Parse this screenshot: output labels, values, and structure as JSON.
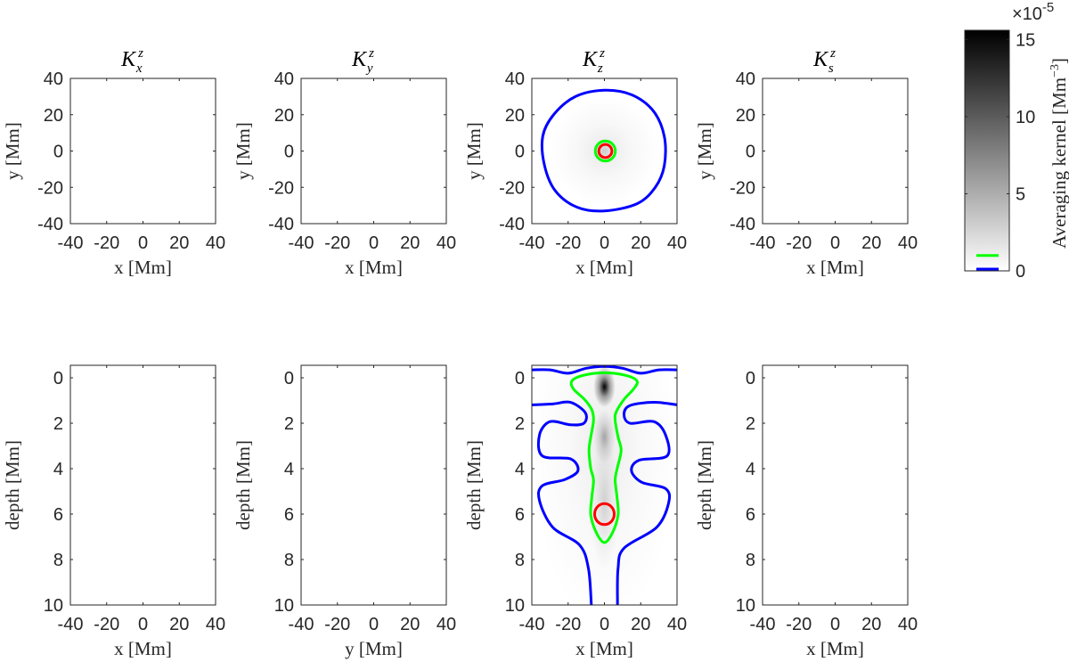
{
  "chart_data": {
    "type": "heatmap",
    "colorbar": {
      "label": "Averaging kernel [Mm",
      "label_exp": "−3",
      "label_end": "]",
      "multiplier": "×10",
      "multiplier_exp": "-5",
      "range": [
        0,
        15.6
      ],
      "ticks": [
        0,
        5,
        10,
        15
      ],
      "tick_labels": [
        "0",
        "5",
        "10",
        "15"
      ],
      "contour_levels": [
        {
          "value": 0.05,
          "color": "#0000ff"
        },
        {
          "value": 1.0,
          "color": "#00ff00"
        }
      ],
      "colormap": "gray-reversed"
    },
    "colors": {
      "blue": "#0000ff",
      "green": "#00ff00",
      "red": "#ff0000",
      "axis": "#262626"
    },
    "top_row": {
      "xlim": [
        -40,
        40
      ],
      "ylim": [
        -40,
        40
      ],
      "xticks": [
        -40,
        -20,
        0,
        20,
        40
      ],
      "xtick_labels": [
        "-40",
        "-20",
        "0",
        "20",
        "40"
      ],
      "yticks": [
        -40,
        -20,
        0,
        20,
        40
      ],
      "ytick_labels": [
        "-40",
        "-20",
        "0",
        "20",
        "40"
      ],
      "ylabel": "y [Mm]",
      "panels": [
        {
          "title_base": "K",
          "title_sup": "z",
          "title_sub": "x",
          "xlabel": "x [Mm]"
        },
        {
          "title_base": "K",
          "title_sup": "z",
          "title_sub": "y",
          "xlabel": "x [Mm]"
        },
        {
          "title_base": "K",
          "title_sup": "z",
          "title_sub": "z",
          "xlabel": "x [Mm]",
          "blobs": [
            {
              "x": 0,
              "y": 0,
              "r": 30,
              "amp": 0.6
            },
            {
              "x": 0,
              "y": 0,
              "r": 7,
              "amp": 1.2
            }
          ],
          "contours": [
            {
              "color": "blue",
              "points": [
                [
                  0,
                  33.5
                ],
                [
                  15,
                  31
                ],
                [
                  27,
                  22
                ],
                [
                  33,
                  8
                ],
                [
                  33,
                  -8
                ],
                [
                  28,
                  -20
                ],
                [
                  18,
                  -29
                ],
                [
                  0,
                  -33
                ],
                [
                  -15,
                  -31
                ],
                [
                  -27,
                  -22
                ],
                [
                  -33,
                  -8
                ],
                [
                  -34,
                  8
                ],
                [
                  -28,
                  20
                ],
                [
                  -16,
                  30
                ]
              ]
            },
            {
              "color": "green",
              "ellipse": [
                0.5,
                0,
                5.5,
                5.5
              ]
            },
            {
              "color": "red",
              "ellipse": [
                0.5,
                0,
                3.6,
                3.6
              ]
            }
          ]
        },
        {
          "title_base": "K",
          "title_sup": "z",
          "title_sub": "s",
          "xlabel": "x [Mm]"
        }
      ]
    },
    "bottom_row": {
      "xlim": [
        -40,
        40
      ],
      "ylim": [
        -0.55,
        10
      ],
      "xticks": [
        -40,
        -20,
        0,
        20,
        40
      ],
      "xtick_labels": [
        "-40",
        "-20",
        "0",
        "20",
        "40"
      ],
      "yticks": [
        0,
        2,
        4,
        6,
        8,
        10
      ],
      "ytick_labels": [
        "0",
        "2",
        "4",
        "6",
        "8",
        "10"
      ],
      "ylabel": "depth [Mm]",
      "panels": [
        {
          "xlabel": "x [Mm]"
        },
        {
          "xlabel": "y [Mm]"
        },
        {
          "xlabel": "x [Mm]",
          "blobs": [
            {
              "x": 0,
              "y": 0.4,
              "r": 6,
              "ry": 0.9,
              "amp": 15
            },
            {
              "x": 0,
              "y": 2.6,
              "r": 6,
              "ry": 1.2,
              "amp": 4
            },
            {
              "x": 0,
              "y": 5.5,
              "r": 8,
              "ry": 3,
              "amp": 1.5
            },
            {
              "x": 0,
              "y": 3,
              "r": 40,
              "ry": 8,
              "amp": 0.4
            }
          ],
          "contours": [
            {
              "color": "blue",
              "points": [
                [
                  -40,
                  -0.35
                ],
                [
                  -30,
                  -0.35
                ],
                [
                  -20,
                  -0.2
                ],
                [
                  -10,
                  -0.42
                ],
                [
                  0,
                  -0.5
                ],
                [
                  10,
                  -0.42
                ],
                [
                  20,
                  -0.2
                ],
                [
                  30,
                  -0.35
                ],
                [
                  40,
                  -0.35
                ]
              ],
              "open": true
            },
            {
              "color": "blue",
              "points": [
                [
                  -40,
                  1.19
                ],
                [
                  -28.5,
                  1.15
                ],
                [
                  -18.7,
                  1.08
                ],
                [
                  -10.5,
                  1.54
                ],
                [
                  -11.3,
                  2.0
                ],
                [
                  -18.7,
                  2.07
                ],
                [
                  -30,
                  1.93
                ],
                [
                  -35.8,
                  2.52
                ],
                [
                  -34.2,
                  3.44
                ],
                [
                  -18.7,
                  3.57
                ],
                [
                  -14.6,
                  4.09
                ],
                [
                  -21.9,
                  4.48
                ],
                [
                  -34.2,
                  4.75
                ],
                [
                  -35.8,
                  5.4
                ],
                [
                  -28.5,
                  6.58
                ],
                [
                  -13.7,
                  7.36
                ],
                [
                  -8.8,
                  8.4
                ],
                [
                  -7.2,
                  10
                ]
              ],
              "open": true
            },
            {
              "color": "blue",
              "points": [
                [
                  40,
                  1.19
                ],
                [
                  27.2,
                  1.08
                ],
                [
                  14.1,
                  1.22
                ],
                [
                  10.8,
                  1.6
                ],
                [
                  14.1,
                  2.0
                ],
                [
                  27.2,
                  1.93
                ],
                [
                  33.7,
                  2.52
                ],
                [
                  34.5,
                  3.44
                ],
                [
                  19,
                  3.63
                ],
                [
                  14.9,
                  4.09
                ],
                [
                  20.6,
                  4.6
                ],
                [
                  33.7,
                  4.88
                ],
                [
                  35.4,
                  5.5
                ],
                [
                  28.8,
                  6.58
                ],
                [
                  10.8,
                  7.5
                ],
                [
                  7.5,
                  8.4
                ],
                [
                  7.2,
                  10
                ]
              ],
              "open": true
            },
            {
              "color": "green",
              "points": [
                [
                  0,
                  -0.22
                ],
                [
                  12,
                  -0.1
                ],
                [
                  18,
                  0.15
                ],
                [
                  16,
                  0.5
                ],
                [
                  10.8,
                  0.95
                ],
                [
                  6.5,
                  1.5
                ],
                [
                  5.9,
                  1.87
                ],
                [
                  7.5,
                  2.6
                ],
                [
                  9.2,
                  3.2
                ],
                [
                  7,
                  4
                ],
                [
                  5.9,
                  4.5
                ],
                [
                  7,
                  5.3
                ],
                [
                  7.5,
                  6.05
                ],
                [
                  4.3,
                  6.84
                ],
                [
                  0,
                  7.25
                ],
                [
                  -4.3,
                  6.84
                ],
                [
                  -7.5,
                  6.05
                ],
                [
                  -7,
                  5.3
                ],
                [
                  -6,
                  4.5
                ],
                [
                  -7.5,
                  4
                ],
                [
                  -8.5,
                  3.2
                ],
                [
                  -7.5,
                  2.6
                ],
                [
                  -6,
                  1.87
                ],
                [
                  -7,
                  1.4
                ],
                [
                  -11,
                  0.95
                ],
                [
                  -17,
                  0.5
                ],
                [
                  -18,
                  0.15
                ],
                [
                  -12,
                  -0.1
                ]
              ]
            },
            {
              "color": "red",
              "ellipse": [
                0,
                6.0,
                5.4,
                0.46
              ]
            }
          ]
        },
        {
          "xlabel": "x [Mm]"
        }
      ]
    }
  }
}
